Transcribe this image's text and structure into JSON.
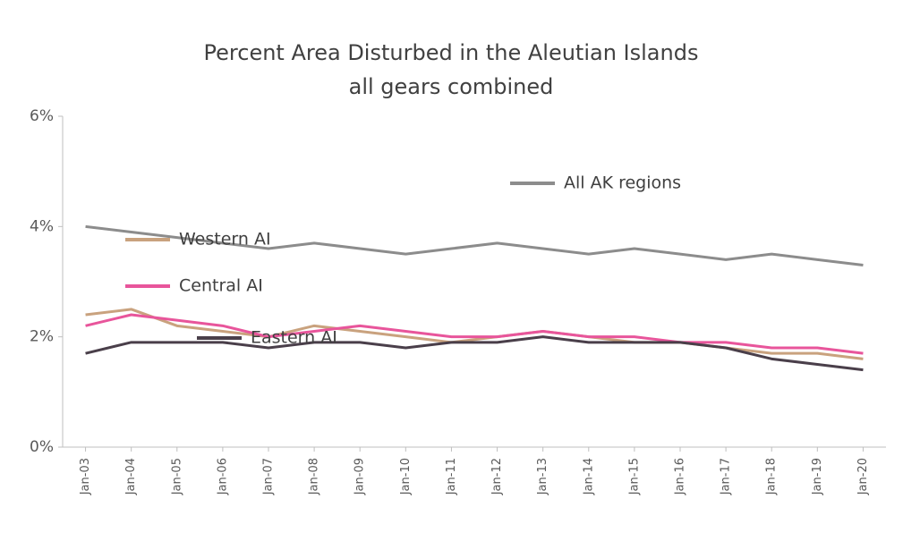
{
  "chart_data": {
    "type": "line",
    "title": "Percent Area Disturbed in the Aleutian Islands",
    "subtitle": "all gears combined",
    "categories": [
      "Jan-03",
      "Jan-04",
      "Jan-05",
      "Jan-06",
      "Jan-07",
      "Jan-08",
      "Jan-09",
      "Jan-10",
      "Jan-11",
      "Jan-12",
      "Jan-13",
      "Jan-14",
      "Jan-15",
      "Jan-16",
      "Jan-17",
      "Jan-18",
      "Jan-19",
      "Jan-20"
    ],
    "series": [
      {
        "name": "All AK regions",
        "color": "#8c8c8c",
        "values": [
          4.0,
          3.9,
          3.8,
          3.7,
          3.6,
          3.7,
          3.6,
          3.5,
          3.6,
          3.7,
          3.6,
          3.5,
          3.6,
          3.5,
          3.4,
          3.5,
          3.4,
          3.3
        ]
      },
      {
        "name": "Western AI",
        "color": "#c9a27e",
        "values": [
          2.4,
          2.5,
          2.2,
          2.1,
          2.0,
          2.2,
          2.1,
          2.0,
          1.9,
          2.0,
          2.1,
          2.0,
          1.9,
          1.9,
          1.8,
          1.7,
          1.7,
          1.6
        ]
      },
      {
        "name": "Central AI",
        "color": "#e8559b",
        "values": [
          2.2,
          2.4,
          2.3,
          2.2,
          2.0,
          2.1,
          2.2,
          2.1,
          2.0,
          2.0,
          2.1,
          2.0,
          2.0,
          1.9,
          1.9,
          1.8,
          1.8,
          1.7
        ]
      },
      {
        "name": "Eastern AI",
        "color": "#4a3f4a",
        "values": [
          1.7,
          1.9,
          1.9,
          1.9,
          1.8,
          1.9,
          1.9,
          1.8,
          1.9,
          1.9,
          2.0,
          1.9,
          1.9,
          1.9,
          1.8,
          1.6,
          1.5,
          1.4
        ]
      }
    ],
    "ylim": [
      0,
      6
    ],
    "yticks": [
      {
        "value": 0,
        "label": "0%"
      },
      {
        "value": 2,
        "label": "2%"
      },
      {
        "value": 4,
        "label": "4%"
      },
      {
        "value": 6,
        "label": "6%"
      }
    ],
    "grid": false
  }
}
